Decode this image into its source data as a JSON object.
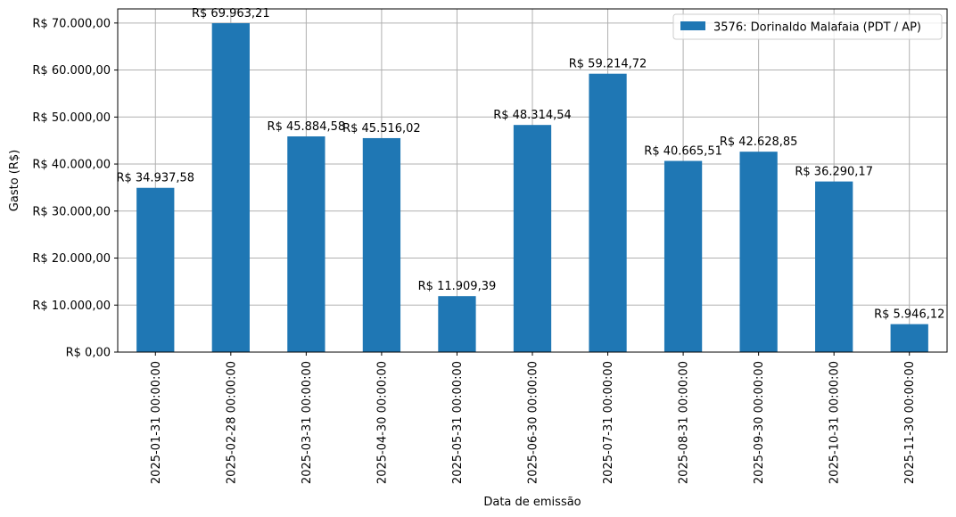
{
  "chart_data": {
    "type": "bar",
    "title": "",
    "xlabel": "Data de emissão",
    "ylabel": "Gasto (R$)",
    "ylim": [
      0,
      73000
    ],
    "yticks": [
      0,
      10000,
      20000,
      30000,
      40000,
      50000,
      60000,
      70000
    ],
    "ytick_labels": [
      "R$ 0,00",
      "R$ 10.000,00",
      "R$ 20.000,00",
      "R$ 30.000,00",
      "R$ 40.000,00",
      "R$ 50.000,00",
      "R$ 60.000,00",
      "R$ 70.000,00"
    ],
    "grid": true,
    "legend_position": "top-right",
    "categories": [
      "2025-01-31 00:00:00",
      "2025-02-28 00:00:00",
      "2025-03-31 00:00:00",
      "2025-04-30 00:00:00",
      "2025-05-31 00:00:00",
      "2025-06-30 00:00:00",
      "2025-07-31 00:00:00",
      "2025-08-31 00:00:00",
      "2025-09-30 00:00:00",
      "2025-10-31 00:00:00",
      "2025-11-30 00:00:00"
    ],
    "series": [
      {
        "name": "3576: Dorinaldo Malafaia (PDT / AP)",
        "color": "#1f77b4",
        "values": [
          34937.58,
          69963.21,
          45884.58,
          45516.02,
          11909.39,
          48314.54,
          59214.72,
          40665.51,
          42628.85,
          36290.17,
          5946.12
        ],
        "value_labels": [
          "R$ 34.937,58",
          "R$ 69.963,21",
          "R$ 45.884,58",
          "R$ 45.516,02",
          "R$ 11.909,39",
          "R$ 48.314,54",
          "R$ 59.214,72",
          "R$ 40.665,51",
          "R$ 42.628,85",
          "R$ 36.290,17",
          "R$ 5.946,12"
        ]
      }
    ]
  }
}
